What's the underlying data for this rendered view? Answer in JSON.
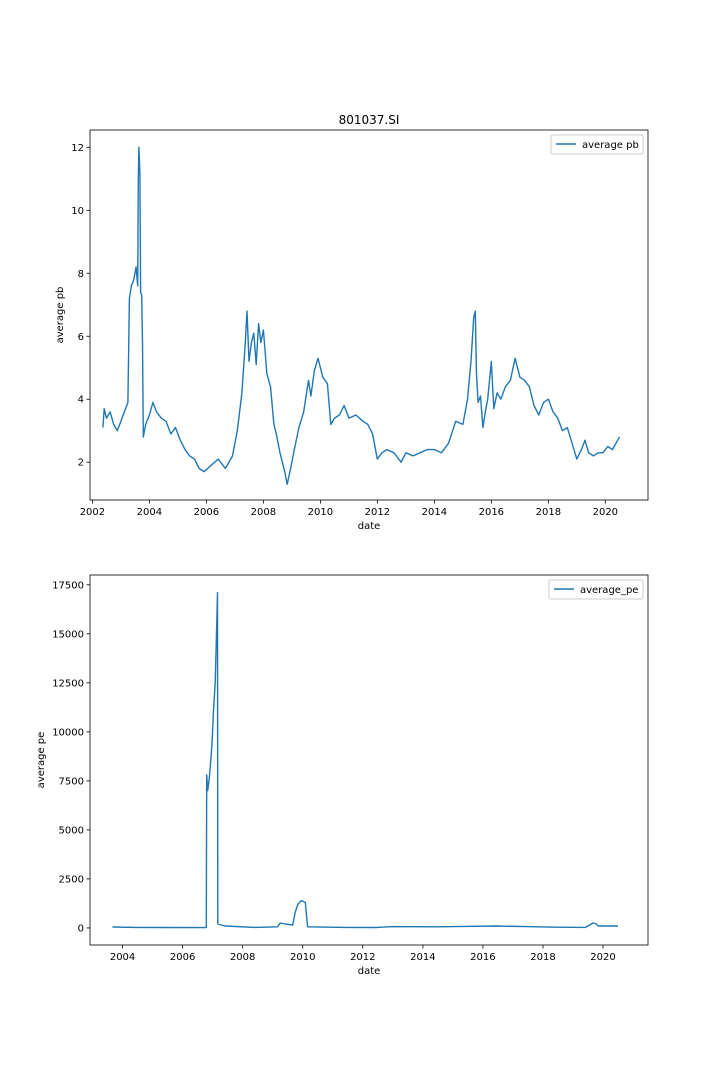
{
  "chart_data": [
    {
      "type": "line",
      "title": "801037.SI",
      "xlabel": "date",
      "ylabel": "average pb",
      "x_axis_type": "date",
      "xlim": [
        "2001-12-01",
        "2021-07-01"
      ],
      "ylim": [
        0.8,
        12.55
      ],
      "x_ticks": [
        "2002-01-01",
        "2004-01-01",
        "2006-01-01",
        "2008-01-01",
        "2010-01-01",
        "2012-01-01",
        "2014-01-01",
        "2016-01-01",
        "2018-01-01",
        "2020-01-01"
      ],
      "x_tick_labels": [
        "2002",
        "2004",
        "2006",
        "2008",
        "2010",
        "2012",
        "2014",
        "2016",
        "2018",
        "2020"
      ],
      "y_ticks": [
        2,
        4,
        6,
        8,
        10,
        12
      ],
      "legend": {
        "position": "top-right",
        "entries": [
          "average pb"
        ]
      },
      "grid": false,
      "color": "#1f77b4",
      "series": [
        {
          "name": "average pb",
          "points": [
            [
              "2002-05-15",
              3.1
            ],
            [
              "2002-06-01",
              3.7
            ],
            [
              "2002-07-01",
              3.4
            ],
            [
              "2002-08-15",
              3.6
            ],
            [
              "2002-10-01",
              3.2
            ],
            [
              "2002-11-15",
              3.0
            ],
            [
              "2003-01-01",
              3.3
            ],
            [
              "2003-02-15",
              3.6
            ],
            [
              "2003-04-01",
              3.9
            ],
            [
              "2003-04-20",
              7.2
            ],
            [
              "2003-05-15",
              7.6
            ],
            [
              "2003-06-15",
              7.8
            ],
            [
              "2003-07-15",
              8.2
            ],
            [
              "2003-08-05",
              7.6
            ],
            [
              "2003-08-12",
              11.0
            ],
            [
              "2003-08-20",
              12.0
            ],
            [
              "2003-09-01",
              11.2
            ],
            [
              "2003-09-10",
              7.4
            ],
            [
              "2003-09-25",
              7.3
            ],
            [
              "2003-10-05",
              5.8
            ],
            [
              "2003-10-15",
              2.8
            ],
            [
              "2003-11-15",
              3.2
            ],
            [
              "2004-01-01",
              3.5
            ],
            [
              "2004-02-15",
              3.9
            ],
            [
              "2004-04-01",
              3.6
            ],
            [
              "2004-06-01",
              3.4
            ],
            [
              "2004-08-01",
              3.3
            ],
            [
              "2004-10-01",
              2.9
            ],
            [
              "2004-12-01",
              3.1
            ],
            [
              "2005-02-01",
              2.7
            ],
            [
              "2005-04-01",
              2.4
            ],
            [
              "2005-06-01",
              2.2
            ],
            [
              "2005-08-01",
              2.1
            ],
            [
              "2005-10-01",
              1.8
            ],
            [
              "2005-12-01",
              1.7
            ],
            [
              "2006-03-01",
              1.9
            ],
            [
              "2006-06-01",
              2.1
            ],
            [
              "2006-09-01",
              1.8
            ],
            [
              "2006-12-01",
              2.2
            ],
            [
              "2007-02-01",
              3.0
            ],
            [
              "2007-04-01",
              4.2
            ],
            [
              "2007-05-15",
              5.8
            ],
            [
              "2007-06-05",
              6.8
            ],
            [
              "2007-07-01",
              5.2
            ],
            [
              "2007-08-01",
              5.8
            ],
            [
              "2007-09-01",
              6.1
            ],
            [
              "2007-10-01",
              5.1
            ],
            [
              "2007-11-01",
              6.4
            ],
            [
              "2007-12-01",
              5.8
            ],
            [
              "2008-01-01",
              6.2
            ],
            [
              "2008-02-15",
              4.8
            ],
            [
              "2008-04-01",
              4.4
            ],
            [
              "2008-05-15",
              3.2
            ],
            [
              "2008-06-15",
              2.9
            ],
            [
              "2008-08-01",
              2.3
            ],
            [
              "2008-10-01",
              1.7
            ],
            [
              "2008-11-01",
              1.3
            ],
            [
              "2008-12-15",
              1.8
            ],
            [
              "2009-02-01",
              2.4
            ],
            [
              "2009-04-01",
              3.1
            ],
            [
              "2009-06-01",
              3.6
            ],
            [
              "2009-08-01",
              4.6
            ],
            [
              "2009-09-01",
              4.1
            ],
            [
              "2009-10-15",
              4.9
            ],
            [
              "2009-12-01",
              5.3
            ],
            [
              "2010-02-01",
              4.7
            ],
            [
              "2010-04-01",
              4.5
            ],
            [
              "2010-05-15",
              3.2
            ],
            [
              "2010-07-01",
              3.4
            ],
            [
              "2010-09-01",
              3.5
            ],
            [
              "2010-11-01",
              3.8
            ],
            [
              "2011-01-01",
              3.4
            ],
            [
              "2011-04-01",
              3.5
            ],
            [
              "2011-07-01",
              3.3
            ],
            [
              "2011-09-01",
              3.2
            ],
            [
              "2011-11-01",
              2.9
            ],
            [
              "2012-01-01",
              2.1
            ],
            [
              "2012-03-01",
              2.3
            ],
            [
              "2012-05-01",
              2.4
            ],
            [
              "2012-08-01",
              2.3
            ],
            [
              "2012-11-01",
              2.0
            ],
            [
              "2013-01-01",
              2.3
            ],
            [
              "2013-04-01",
              2.2
            ],
            [
              "2013-07-01",
              2.3
            ],
            [
              "2013-10-01",
              2.4
            ],
            [
              "2014-01-01",
              2.4
            ],
            [
              "2014-04-01",
              2.3
            ],
            [
              "2014-07-01",
              2.6
            ],
            [
              "2014-10-01",
              3.3
            ],
            [
              "2015-01-01",
              3.2
            ],
            [
              "2015-03-01",
              4.0
            ],
            [
              "2015-04-15",
              5.2
            ],
            [
              "2015-05-20",
              6.6
            ],
            [
              "2015-06-10",
              6.8
            ],
            [
              "2015-06-25",
              4.8
            ],
            [
              "2015-07-15",
              3.9
            ],
            [
              "2015-08-15",
              4.1
            ],
            [
              "2015-09-15",
              3.1
            ],
            [
              "2015-10-15",
              3.6
            ],
            [
              "2015-11-15",
              4.0
            ],
            [
              "2016-01-01",
              5.2
            ],
            [
              "2016-02-01",
              3.7
            ],
            [
              "2016-03-15",
              4.2
            ],
            [
              "2016-05-01",
              4.0
            ],
            [
              "2016-07-01",
              4.4
            ],
            [
              "2016-09-01",
              4.6
            ],
            [
              "2016-11-01",
              5.3
            ],
            [
              "2017-01-01",
              4.7
            ],
            [
              "2017-03-01",
              4.6
            ],
            [
              "2017-05-01",
              4.4
            ],
            [
              "2017-07-01",
              3.8
            ],
            [
              "2017-09-01",
              3.5
            ],
            [
              "2017-11-01",
              3.9
            ],
            [
              "2018-01-01",
              4.0
            ],
            [
              "2018-03-01",
              3.6
            ],
            [
              "2018-05-01",
              3.4
            ],
            [
              "2018-07-01",
              3.0
            ],
            [
              "2018-09-01",
              3.1
            ],
            [
              "2018-11-01",
              2.6
            ],
            [
              "2019-01-01",
              2.1
            ],
            [
              "2019-03-01",
              2.4
            ],
            [
              "2019-04-15",
              2.7
            ],
            [
              "2019-06-01",
              2.3
            ],
            [
              "2019-08-01",
              2.2
            ],
            [
              "2019-10-01",
              2.3
            ],
            [
              "2019-12-01",
              2.3
            ],
            [
              "2020-02-01",
              2.5
            ],
            [
              "2020-04-01",
              2.4
            ],
            [
              "2020-05-15",
              2.6
            ],
            [
              "2020-07-01",
              2.8
            ]
          ]
        }
      ]
    },
    {
      "type": "line",
      "title": "",
      "xlabel": "date",
      "ylabel": "average pe",
      "x_axis_type": "date",
      "xlim": [
        "2002-12-01",
        "2021-07-01"
      ],
      "ylim": [
        -870,
        18000
      ],
      "x_ticks": [
        "2004-01-01",
        "2006-01-01",
        "2008-01-01",
        "2010-01-01",
        "2012-01-01",
        "2014-01-01",
        "2016-01-01",
        "2018-01-01",
        "2020-01-01"
      ],
      "x_tick_labels": [
        "2004",
        "2006",
        "2008",
        "2010",
        "2012",
        "2014",
        "2016",
        "2018",
        "2020"
      ],
      "y_ticks": [
        0,
        2500,
        5000,
        7500,
        10000,
        12500,
        15000,
        17500
      ],
      "legend": {
        "position": "top-right",
        "entries": [
          "average_pe"
        ]
      },
      "grid": false,
      "color": "#1f77b4",
      "series": [
        {
          "name": "average_pe",
          "points": [
            [
              "2003-09-01",
              50
            ],
            [
              "2004-06-01",
              30
            ],
            [
              "2005-06-01",
              20
            ],
            [
              "2006-06-01",
              15
            ],
            [
              "2006-10-15",
              20
            ],
            [
              "2006-10-20",
              7800
            ],
            [
              "2006-11-01",
              7000
            ],
            [
              "2006-11-20",
              7600
            ],
            [
              "2006-12-10",
              8600
            ],
            [
              "2006-12-25",
              9500
            ],
            [
              "2007-01-10",
              11000
            ],
            [
              "2007-02-01",
              12500
            ],
            [
              "2007-02-15",
              14800
            ],
            [
              "2007-03-01",
              17100
            ],
            [
              "2007-03-05",
              200
            ],
            [
              "2007-06-01",
              100
            ],
            [
              "2008-06-01",
              30
            ],
            [
              "2009-03-01",
              60
            ],
            [
              "2009-04-01",
              250
            ],
            [
              "2009-06-01",
              200
            ],
            [
              "2009-09-01",
              150
            ],
            [
              "2009-10-01",
              800
            ],
            [
              "2009-11-01",
              1200
            ],
            [
              "2009-12-15",
              1400
            ],
            [
              "2010-02-01",
              1300
            ],
            [
              "2010-03-01",
              60
            ],
            [
              "2011-06-01",
              30
            ],
            [
              "2012-06-01",
              20
            ],
            [
              "2013-01-01",
              70
            ],
            [
              "2014-06-01",
              60
            ],
            [
              "2015-06-01",
              80
            ],
            [
              "2016-06-01",
              100
            ],
            [
              "2017-06-01",
              70
            ],
            [
              "2018-06-01",
              40
            ],
            [
              "2019-06-01",
              30
            ],
            [
              "2019-09-01",
              250
            ],
            [
              "2019-10-15",
              200
            ],
            [
              "2019-11-01",
              100
            ],
            [
              "2020-07-01",
              100
            ]
          ]
        }
      ]
    }
  ]
}
